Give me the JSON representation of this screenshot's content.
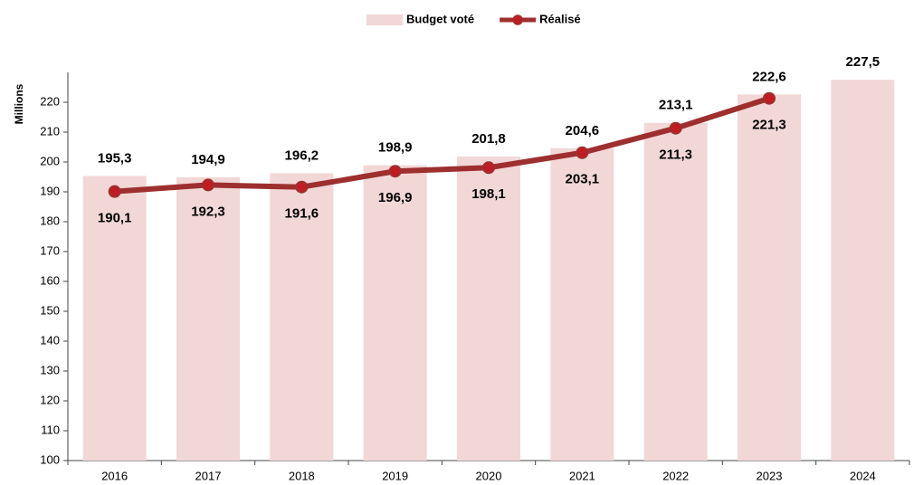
{
  "chart_data": {
    "type": "bar",
    "y_label": "Millions",
    "categories": [
      "2016",
      "2017",
      "2018",
      "2019",
      "2020",
      "2021",
      "2022",
      "2023",
      "2024"
    ],
    "series": [
      {
        "name": "Budget voté",
        "type": "bar",
        "color": "#f2d7d7",
        "label_color": "#000000",
        "values": [
          195.3,
          194.9,
          196.2,
          198.9,
          201.8,
          204.6,
          213.1,
          222.6,
          227.5
        ],
        "value_labels": [
          "195,3",
          "194,9",
          "196,2",
          "198,9",
          "201,8",
          "204,6",
          "213,1",
          "222,6",
          "227,5"
        ]
      },
      {
        "name": "Réalisé",
        "type": "line",
        "color": "#9e2f2f",
        "marker_color": "#c21b22",
        "label_color": "#a3386c",
        "values": [
          190.1,
          192.3,
          191.6,
          196.9,
          198.1,
          203.1,
          211.3,
          221.3,
          null
        ],
        "value_labels": [
          "190,1",
          "192,3",
          "191,6",
          "196,9",
          "198,1",
          "203,1",
          "211,3",
          "221,3",
          null
        ]
      }
    ],
    "ylim": [
      100,
      230
    ],
    "yticks": [
      100,
      110,
      120,
      130,
      140,
      150,
      160,
      170,
      180,
      190,
      200,
      210,
      220
    ],
    "grid": false,
    "legend": "top"
  }
}
